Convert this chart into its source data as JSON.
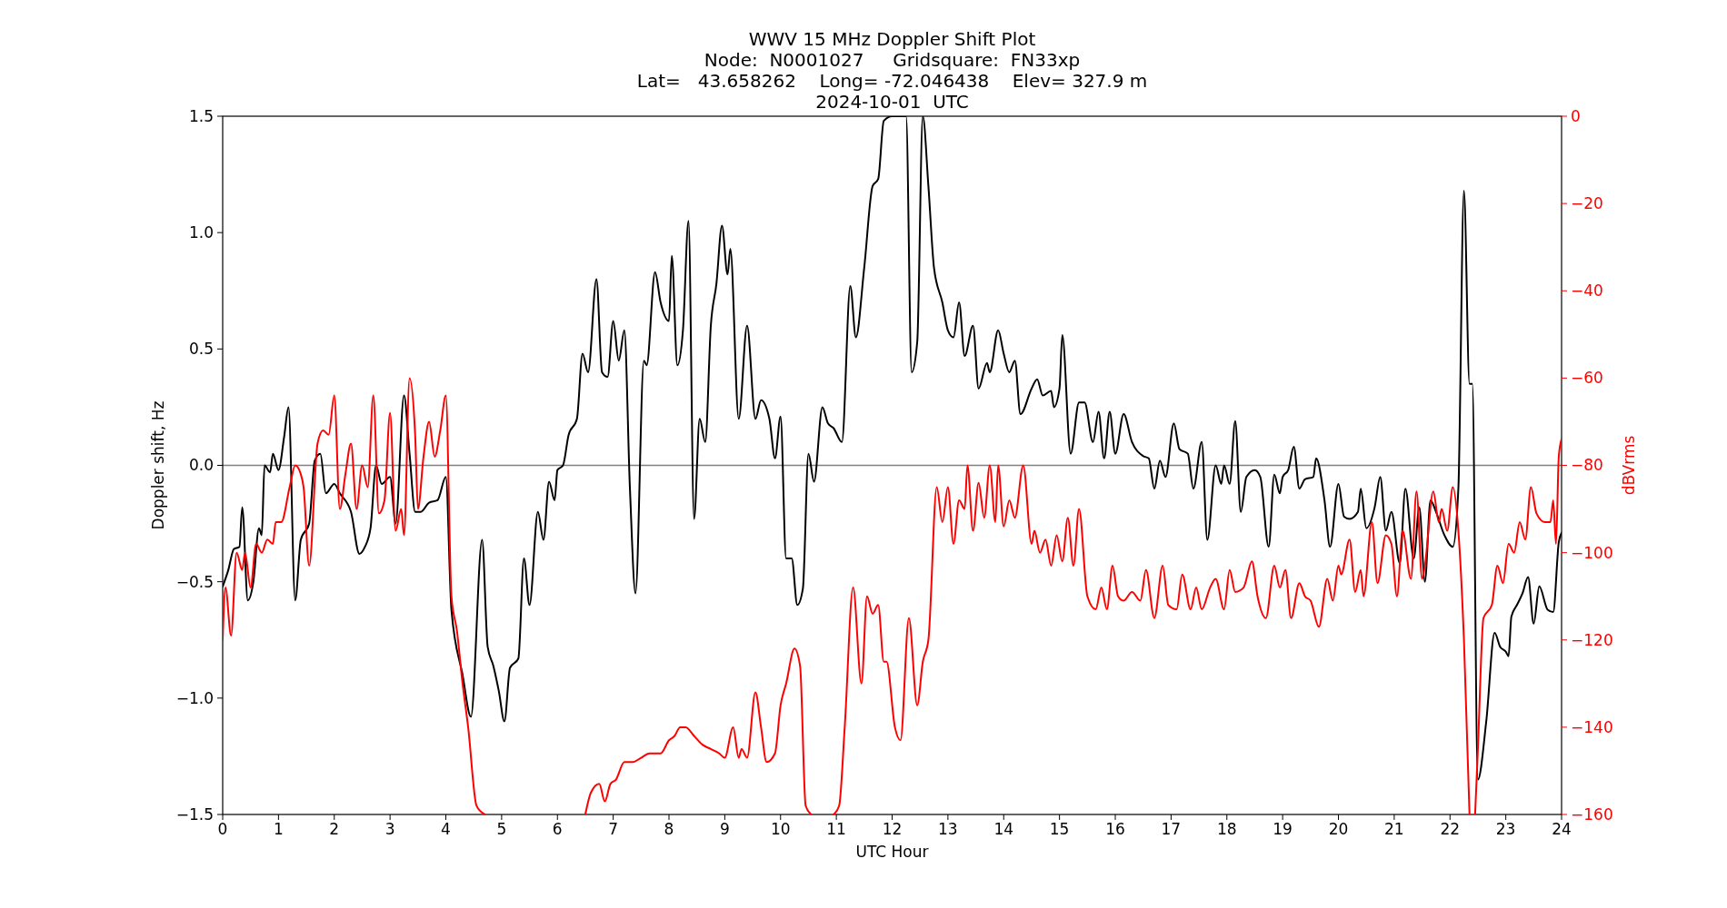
{
  "chart_data": {
    "type": "line",
    "title": "WWV 15 MHz Doppler Shift Plot\nNode:  N0001027     Gridsquare:  FN33xp\nLat=   43.658262    Long= -72.046438    Elev= 327.9 m\n2024-10-01  UTC",
    "xlabel": "UTC Hour",
    "ylabel": "Doppler shift, Hz",
    "y2label": "dBVrms",
    "xlim": [
      0,
      24
    ],
    "xticks": [
      0,
      1,
      2,
      3,
      4,
      5,
      6,
      7,
      8,
      9,
      10,
      11,
      12,
      13,
      14,
      15,
      16,
      17,
      18,
      19,
      20,
      21,
      22,
      23,
      24
    ],
    "ylim": [
      -1.5,
      1.5
    ],
    "yticks": [
      {
        "value": -1.5,
        "label": "−1.5"
      },
      {
        "value": -1,
        "label": "−1.0"
      },
      {
        "value": -0.5,
        "label": "−0.5"
      },
      {
        "value": 0,
        "label": "0.0"
      },
      {
        "value": 0.5,
        "label": "0.5"
      },
      {
        "value": 1,
        "label": "1.0"
      },
      {
        "value": 1.5,
        "label": "1.5"
      }
    ],
    "y2lim": [
      -160,
      0
    ],
    "y2ticks": [
      {
        "value": -160,
        "label": "−160"
      },
      {
        "value": -140,
        "label": "−140"
      },
      {
        "value": -120,
        "label": "−120"
      },
      {
        "value": -100,
        "label": "−100"
      },
      {
        "value": -80,
        "label": "−80"
      },
      {
        "value": -60,
        "label": "−60"
      },
      {
        "value": -40,
        "label": "−40"
      },
      {
        "value": -20,
        "label": "−20"
      },
      {
        "value": 0,
        "label": "0"
      }
    ],
    "ref_lines": [
      {
        "axis": "y",
        "value": 0,
        "color": "#808080"
      }
    ],
    "grid": false,
    "series": [
      {
        "color": "#000000",
        "x": [
          0,
          0.1,
          0.2,
          0.3,
          0.35,
          0.45,
          0.55,
          0.65,
          0.7,
          0.75,
          0.85,
          0.9,
          1.0,
          1.1,
          1.18,
          1.3,
          1.4,
          1.55,
          1.65,
          1.75,
          1.85,
          2.0,
          2.1,
          2.3,
          2.45,
          2.55,
          2.65,
          2.75,
          2.85,
          3.0,
          3.1,
          3.25,
          3.35,
          3.45,
          3.55,
          3.7,
          3.85,
          4.0,
          4.1,
          4.3,
          4.45,
          4.65,
          4.75,
          4.85,
          4.95,
          5.05,
          5.15,
          5.3,
          5.4,
          5.5,
          5.65,
          5.75,
          5.85,
          5.95,
          6.0,
          6.1,
          6.2,
          6.35,
          6.45,
          6.55,
          6.7,
          6.8,
          6.9,
          7.0,
          7.1,
          7.2,
          7.3,
          7.4,
          7.55,
          7.6,
          7.75,
          7.85,
          8.0,
          8.05,
          8.15,
          8.25,
          8.35,
          8.45,
          8.55,
          8.65,
          8.75,
          8.85,
          8.95,
          9.05,
          9.1,
          9.25,
          9.4,
          9.55,
          9.65,
          9.8,
          9.9,
          10.0,
          10.1,
          10.2,
          10.3,
          10.4,
          10.5,
          10.6,
          10.75,
          10.85,
          10.95,
          11.1,
          11.25,
          11.35,
          11.5,
          11.65,
          11.75,
          11.85,
          12.0,
          12.25,
          12.35,
          12.45,
          12.55,
          12.65,
          12.75,
          12.9,
          13.0,
          13.1,
          13.2,
          13.3,
          13.45,
          13.55,
          13.7,
          13.75,
          13.9,
          14.0,
          14.1,
          14.2,
          14.3,
          14.5,
          14.6,
          14.7,
          14.85,
          14.9,
          15.0,
          15.05,
          15.2,
          15.35,
          15.45,
          15.6,
          15.7,
          15.8,
          15.9,
          16.0,
          16.15,
          16.3,
          16.5,
          16.6,
          16.7,
          16.8,
          16.9,
          17.05,
          17.15,
          17.3,
          17.4,
          17.55,
          17.65,
          17.8,
          17.9,
          17.95,
          18.05,
          18.15,
          18.25,
          18.35,
          18.5,
          18.6,
          18.75,
          18.85,
          18.95,
          19.0,
          19.1,
          19.2,
          19.3,
          19.4,
          19.55,
          19.6,
          19.75,
          19.85,
          20.0,
          20.1,
          20.2,
          20.35,
          20.4,
          20.5,
          20.65,
          20.75,
          20.85,
          20.95,
          21.1,
          21.2,
          21.35,
          21.45,
          21.55,
          21.65,
          21.75,
          21.9,
          22.05,
          22.15,
          22.25,
          22.35,
          22.4,
          22.5,
          22.65,
          22.8,
          22.9,
          23.0,
          23.05,
          23.1,
          23.2,
          23.3,
          23.4,
          23.5,
          23.6,
          23.75,
          23.85,
          23.95,
          24.0
        ],
        "values": [
          -0.52,
          -0.45,
          -0.36,
          -0.35,
          -0.18,
          -0.58,
          -0.5,
          -0.27,
          -0.3,
          0.0,
          -0.03,
          0.05,
          -0.02,
          0.12,
          0.25,
          -0.58,
          -0.32,
          -0.25,
          0.02,
          0.05,
          -0.12,
          -0.08,
          -0.12,
          -0.2,
          -0.38,
          -0.35,
          -0.27,
          0.0,
          -0.08,
          -0.05,
          -0.25,
          0.3,
          0.05,
          -0.2,
          -0.2,
          -0.16,
          -0.15,
          -0.05,
          -0.62,
          -0.9,
          -1.08,
          -0.32,
          -0.78,
          -0.86,
          -0.97,
          -1.1,
          -0.87,
          -0.83,
          -0.4,
          -0.6,
          -0.2,
          -0.32,
          -0.07,
          -0.15,
          -0.02,
          0.0,
          0.13,
          0.2,
          0.48,
          0.4,
          0.8,
          0.4,
          0.38,
          0.62,
          0.45,
          0.58,
          -0.1,
          -0.55,
          0.45,
          0.43,
          0.83,
          0.7,
          0.62,
          0.9,
          0.43,
          0.58,
          1.05,
          -0.23,
          0.2,
          0.1,
          0.6,
          0.78,
          1.03,
          0.82,
          0.93,
          0.2,
          0.6,
          0.2,
          0.28,
          0.2,
          0.03,
          0.21,
          -0.4,
          -0.4,
          -0.6,
          -0.53,
          0.05,
          -0.07,
          0.25,
          0.18,
          0.16,
          0.1,
          0.77,
          0.55,
          0.85,
          1.2,
          1.23,
          1.48,
          1.5,
          1.5,
          0.4,
          0.53,
          1.5,
          1.2,
          0.85,
          0.7,
          0.58,
          0.55,
          0.7,
          0.47,
          0.6,
          0.33,
          0.44,
          0.4,
          0.58,
          0.48,
          0.4,
          0.45,
          0.22,
          0.33,
          0.37,
          0.3,
          0.32,
          0.25,
          0.33,
          0.56,
          0.05,
          0.27,
          0.27,
          0.1,
          0.23,
          0.03,
          0.23,
          0.05,
          0.22,
          0.1,
          0.04,
          0.03,
          -0.1,
          0.02,
          -0.05,
          0.18,
          0.07,
          0.05,
          -0.1,
          0.1,
          -0.32,
          0.0,
          -0.08,
          0.0,
          -0.08,
          0.19,
          -0.2,
          -0.05,
          -0.02,
          -0.05,
          -0.35,
          -0.04,
          -0.12,
          -0.05,
          -0.02,
          0.08,
          -0.1,
          -0.06,
          -0.05,
          0.03,
          -0.15,
          -0.35,
          -0.08,
          -0.22,
          -0.23,
          -0.2,
          -0.1,
          -0.27,
          -0.18,
          -0.05,
          -0.28,
          -0.2,
          -0.42,
          -0.1,
          -0.4,
          -0.18,
          -0.5,
          -0.15,
          -0.2,
          -0.3,
          -0.35,
          -0.1,
          1.18,
          0.35,
          0.35,
          -1.35,
          -1.1,
          -0.72,
          -0.78,
          -0.8,
          -0.82,
          -0.65,
          -0.6,
          -0.55,
          -0.48,
          -0.68,
          -0.52,
          -0.62,
          -0.63,
          -0.33,
          -0.29
        ]
      },
      {
        "color": "#ff0000",
        "axis": "y2",
        "x": [
          0,
          0.05,
          0.15,
          0.25,
          0.35,
          0.4,
          0.5,
          0.6,
          0.7,
          0.8,
          0.9,
          0.95,
          1.05,
          1.2,
          1.3,
          1.4,
          1.45,
          1.55,
          1.7,
          1.8,
          1.9,
          2.0,
          2.1,
          2.2,
          2.3,
          2.4,
          2.5,
          2.6,
          2.7,
          2.8,
          2.9,
          3.0,
          3.1,
          3.2,
          3.25,
          3.35,
          3.45,
          3.5,
          3.6,
          3.7,
          3.8,
          3.9,
          4.0,
          4.1,
          4.2,
          4.3,
          4.4,
          4.55,
          4.7,
          5.5,
          6.5,
          6.6,
          6.75,
          6.85,
          6.95,
          7.05,
          7.2,
          7.35,
          7.5,
          7.65,
          7.85,
          8.0,
          8.1,
          8.2,
          8.3,
          8.45,
          8.6,
          8.75,
          8.9,
          9.0,
          9.15,
          9.25,
          9.3,
          9.4,
          9.55,
          9.65,
          9.75,
          9.9,
          10.0,
          10.1,
          10.25,
          10.35,
          10.45,
          10.55,
          10.75,
          10.95,
          11.05,
          11.15,
          11.3,
          11.45,
          11.55,
          11.65,
          11.75,
          11.85,
          11.9,
          12.05,
          12.15,
          12.3,
          12.45,
          12.55,
          12.65,
          12.8,
          12.9,
          13.0,
          13.1,
          13.2,
          13.3,
          13.35,
          13.45,
          13.55,
          13.65,
          13.75,
          13.85,
          13.9,
          14.0,
          14.1,
          14.2,
          14.35,
          14.5,
          14.55,
          14.65,
          14.75,
          14.85,
          14.95,
          15.05,
          15.15,
          15.25,
          15.35,
          15.5,
          15.65,
          15.75,
          15.85,
          15.95,
          16.05,
          16.15,
          16.3,
          16.45,
          16.55,
          16.7,
          16.85,
          16.95,
          17.1,
          17.2,
          17.35,
          17.45,
          17.55,
          17.7,
          17.8,
          17.95,
          18.05,
          18.15,
          18.3,
          18.45,
          18.55,
          18.7,
          18.85,
          18.95,
          19.05,
          19.15,
          19.3,
          19.4,
          19.5,
          19.65,
          19.8,
          19.9,
          20.0,
          20.05,
          20.2,
          20.3,
          20.4,
          20.45,
          20.6,
          20.7,
          20.85,
          20.95,
          21.05,
          21.15,
          21.3,
          21.4,
          21.5,
          21.55,
          21.7,
          21.8,
          21.85,
          21.95,
          22.05,
          22.15,
          22.25,
          22.35,
          22.4,
          22.45,
          22.5,
          22.6,
          22.75,
          22.85,
          22.95,
          23.05,
          23.15,
          23.25,
          23.35,
          23.45,
          23.55,
          23.7,
          23.8,
          23.85,
          23.9,
          23.95,
          24.0
        ],
        "values": [
          -120,
          -108,
          -119,
          -100,
          -104,
          -100,
          -108,
          -98,
          -100,
          -97,
          -98,
          -93,
          -93,
          -85,
          -80,
          -82,
          -85,
          -103,
          -75,
          -72,
          -73,
          -64,
          -90,
          -82,
          -75,
          -90,
          -80,
          -85,
          -64,
          -91,
          -88,
          -68,
          -95,
          -90,
          -96,
          -60,
          -73,
          -90,
          -78,
          -70,
          -78,
          -72,
          -64,
          -110,
          -118,
          -130,
          -140,
          -158,
          -160,
          null,
          -160,
          -155,
          -153,
          -157,
          -153,
          -152,
          -148,
          -148,
          -147,
          -146,
          -146,
          -143,
          -142,
          -140,
          -140,
          -142,
          -144,
          -145,
          -146,
          -147,
          -140,
          -147,
          -145,
          -147,
          -132,
          -140,
          -148,
          -146,
          -135,
          -130,
          -122,
          -126,
          -158,
          -160,
          null,
          -160,
          -158,
          -140,
          -108,
          -130,
          -110,
          -114,
          -112,
          -125,
          -125,
          -140,
          -143,
          -115,
          -135,
          -125,
          -120,
          -85,
          -93,
          -85,
          -98,
          -88,
          -90,
          -80,
          -95,
          -84,
          -92,
          -80,
          -93,
          -80,
          -94,
          -88,
          -92,
          -80,
          -98,
          -95,
          -100,
          -97,
          -103,
          -96,
          -102,
          -92,
          -103,
          -90,
          -110,
          -113,
          -108,
          -113,
          -103,
          -110,
          -111,
          -109,
          -111,
          -104,
          -115,
          -103,
          -112,
          -113,
          -105,
          -113,
          -108,
          -113,
          -108,
          -106,
          -113,
          -104,
          -109,
          -108,
          -102,
          -110,
          -115,
          -103,
          -108,
          -104,
          -115,
          -107,
          -110,
          -111,
          -117,
          -106,
          -111,
          -103,
          -105,
          -97,
          -109,
          -104,
          -110,
          -93,
          -107,
          -96,
          -98,
          -110,
          -95,
          -106,
          -86,
          -106,
          -103,
          -86,
          -93,
          -90,
          -95,
          -85,
          -95,
          -120,
          -160,
          null,
          -160,
          -145,
          -115,
          -112,
          -103,
          -107,
          -98,
          -100,
          -93,
          -97,
          -85,
          -91,
          -93,
          -93,
          -88,
          -98,
          -78,
          -74
        ]
      }
    ]
  }
}
